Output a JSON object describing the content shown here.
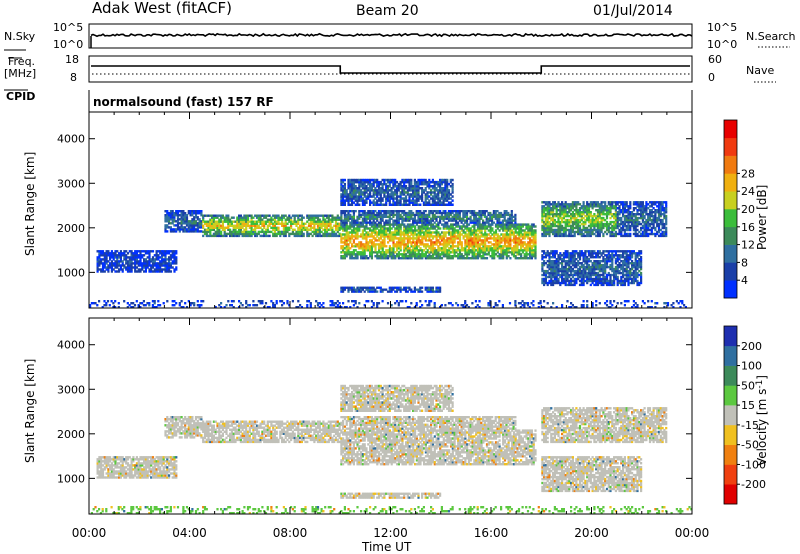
{
  "header": {
    "title": "Adak West (fitACF)",
    "beam": "Beam 20",
    "date": "01/Jul/2014"
  },
  "summary_labels": {
    "nsky": "N.Sky",
    "nsearch": "N.Search",
    "freq": "Freq.",
    "freq_unit": "[MHz]",
    "nave": "Nave",
    "cpid": "CPID",
    "cpid_text": "normalsound (fast) 157 RF"
  },
  "noise_axis": {
    "left_ticks": [
      "10^5",
      "10^0"
    ],
    "right_ticks": [
      "10^5",
      "10^0"
    ]
  },
  "freq_axis": {
    "left_ticks": [
      "18",
      "8"
    ],
    "right_ticks": [
      "60",
      "0"
    ]
  },
  "time_axis": {
    "ticks": [
      "00:00",
      "04:00",
      "08:00",
      "12:00",
      "16:00",
      "20:00",
      "00:00"
    ],
    "label": "Time UT"
  },
  "chart_data": [
    {
      "type": "heatmap",
      "ylabel": "Slant Range [km]",
      "yticks": [
        "1000",
        "2000",
        "3000",
        "4000"
      ],
      "ylim": [
        200,
        4600
      ],
      "xlim_hours": [
        0,
        24
      ],
      "colorbar": {
        "label": "Power [dB]",
        "ticks": [
          "4",
          "8",
          "12",
          "16",
          "20",
          "24",
          "28"
        ],
        "colors": [
          "#0030ff",
          "#1a3fa8",
          "#2f6fa0",
          "#3c8a5a",
          "#3bbd3b",
          "#c8d020",
          "#f0b010",
          "#f07a10",
          "#f03a10",
          "#e80000"
        ]
      },
      "bands": [
        {
          "t": [
            0.3,
            3.5
          ],
          "r": [
            1000,
            1500
          ],
          "level": 1
        },
        {
          "t": [
            3.0,
            4.5
          ],
          "r": [
            1900,
            2400
          ],
          "level": 2
        },
        {
          "t": [
            4.5,
            10.0
          ],
          "r": [
            1800,
            2300
          ],
          "level": 6
        },
        {
          "t": [
            10.0,
            17.8
          ],
          "r": [
            1300,
            2100
          ],
          "level": 7
        },
        {
          "t": [
            10.0,
            17.0
          ],
          "r": [
            2100,
            2400
          ],
          "level": 3
        },
        {
          "t": [
            10.0,
            14.5
          ],
          "r": [
            2500,
            3100
          ],
          "level": 2
        },
        {
          "t": [
            10.0,
            14.0
          ],
          "r": [
            550,
            680
          ],
          "level": 2
        },
        {
          "t": [
            18.0,
            21.0
          ],
          "r": [
            1800,
            2600
          ],
          "level": 5
        },
        {
          "t": [
            18.0,
            22.0
          ],
          "r": [
            700,
            1500
          ],
          "level": 2
        },
        {
          "t": [
            21.0,
            23.0
          ],
          "r": [
            1800,
            2600
          ],
          "level": 2
        },
        {
          "t": [
            0.0,
            24.0
          ],
          "r": [
            200,
            380
          ],
          "level": 1
        }
      ]
    },
    {
      "type": "heatmap",
      "ylabel": "Slant Range [km]",
      "yticks": [
        "1000",
        "2000",
        "3000",
        "4000"
      ],
      "ylim": [
        200,
        4600
      ],
      "xlim_hours": [
        0,
        24
      ],
      "colorbar": {
        "label": "Velocity [m s^-1]",
        "ticks": [
          "200",
          "100",
          "50",
          "15",
          "-15",
          "-50",
          "-100",
          "-200"
        ],
        "colors": [
          "#1e2fb0",
          "#2f6fa0",
          "#3c8a5a",
          "#5cc840",
          "#c0c0b8",
          "#f0c020",
          "#f08010",
          "#f04010",
          "#e00000"
        ]
      },
      "bands": [
        {
          "t": [
            0.3,
            3.5
          ],
          "r": [
            1000,
            1500
          ],
          "level": 4
        },
        {
          "t": [
            3.0,
            4.5
          ],
          "r": [
            1900,
            2400
          ],
          "level": 4
        },
        {
          "t": [
            4.5,
            10.0
          ],
          "r": [
            1800,
            2300
          ],
          "level": 4
        },
        {
          "t": [
            10.0,
            17.8
          ],
          "r": [
            1300,
            2100
          ],
          "level": 4
        },
        {
          "t": [
            10.0,
            17.0
          ],
          "r": [
            2100,
            2400
          ],
          "level": 4
        },
        {
          "t": [
            10.0,
            14.5
          ],
          "r": [
            2500,
            3100
          ],
          "level": 4
        },
        {
          "t": [
            10.0,
            14.0
          ],
          "r": [
            550,
            680
          ],
          "level": 4
        },
        {
          "t": [
            18.0,
            21.0
          ],
          "r": [
            1800,
            2600
          ],
          "level": 4
        },
        {
          "t": [
            18.0,
            22.0
          ],
          "r": [
            700,
            1500
          ],
          "level": 4
        },
        {
          "t": [
            21.0,
            23.0
          ],
          "r": [
            1800,
            2600
          ],
          "level": 4
        },
        {
          "t": [
            0.0,
            24.0
          ],
          "r": [
            200,
            380
          ],
          "level": 3
        }
      ]
    }
  ]
}
